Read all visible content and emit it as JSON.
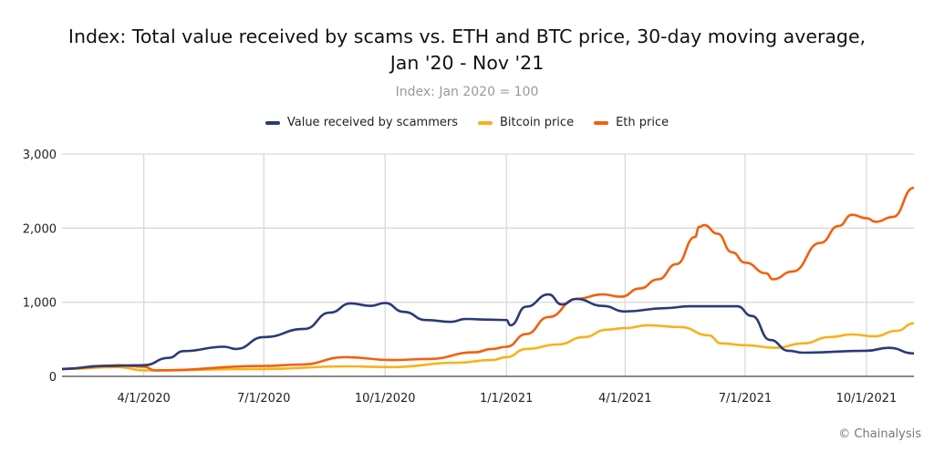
{
  "chart_data": {
    "type": "line",
    "title_line1": "Index: Total value received by scams vs. ETH and BTC price, 30-day moving average,",
    "title_line2": "Jan '20 - Nov '21",
    "subtitle": "Index: Jan 2020 = 100",
    "credit": "© Chainalysis",
    "legend_position": "top",
    "grid": true,
    "xlim": [
      "2020-01-30",
      "2021-11-06"
    ],
    "ylim": [
      0,
      3000
    ],
    "yticks": [
      0,
      1000,
      2000,
      3000
    ],
    "ytick_labels": [
      "0",
      "1,000",
      "2,000",
      "3,000"
    ],
    "xticks": [
      "2020-04-01",
      "2020-07-01",
      "2020-10-01",
      "2021-01-01",
      "2021-04-01",
      "2021-07-01",
      "2021-10-01"
    ],
    "xtick_labels": [
      "4/1/2020",
      "7/1/2020",
      "10/1/2020",
      "1/1/2021",
      "4/1/2021",
      "7/1/2021",
      "10/1/2021"
    ],
    "series": [
      {
        "name": "Value received by scammers",
        "color": "#2b3a75",
        "points": [
          [
            "2020-01-30",
            100
          ],
          [
            "2020-03-01",
            140
          ],
          [
            "2020-04-01",
            150
          ],
          [
            "2020-04-20",
            250
          ],
          [
            "2020-05-01",
            340
          ],
          [
            "2020-06-01",
            400
          ],
          [
            "2020-06-10",
            370
          ],
          [
            "2020-07-01",
            530
          ],
          [
            "2020-08-01",
            640
          ],
          [
            "2020-08-20",
            860
          ],
          [
            "2020-09-05",
            985
          ],
          [
            "2020-09-20",
            950
          ],
          [
            "2020-10-01",
            990
          ],
          [
            "2020-10-15",
            870
          ],
          [
            "2020-11-01",
            760
          ],
          [
            "2020-11-20",
            735
          ],
          [
            "2020-12-01",
            775
          ],
          [
            "2020-12-20",
            765
          ],
          [
            "2021-01-01",
            760
          ],
          [
            "2021-01-04",
            690
          ],
          [
            "2021-01-16",
            940
          ],
          [
            "2021-02-02",
            1105
          ],
          [
            "2021-02-12",
            970
          ],
          [
            "2021-02-23",
            1045
          ],
          [
            "2021-03-15",
            950
          ],
          [
            "2021-04-01",
            875
          ],
          [
            "2021-05-01",
            920
          ],
          [
            "2021-05-20",
            945
          ],
          [
            "2021-06-25",
            945
          ],
          [
            "2021-07-06",
            815
          ],
          [
            "2021-07-20",
            490
          ],
          [
            "2021-08-03",
            345
          ],
          [
            "2021-08-14",
            320
          ],
          [
            "2021-10-01",
            345
          ],
          [
            "2021-10-18",
            385
          ],
          [
            "2021-11-06",
            310
          ]
        ]
      },
      {
        "name": "Bitcoin price",
        "color": "#f7b21b",
        "points": [
          [
            "2020-01-30",
            100
          ],
          [
            "2020-03-13",
            125
          ],
          [
            "2020-04-01",
            80
          ],
          [
            "2020-07-01",
            100
          ],
          [
            "2020-09-01",
            135
          ],
          [
            "2020-10-06",
            125
          ],
          [
            "2020-11-24",
            185
          ],
          [
            "2020-12-21",
            220
          ],
          [
            "2021-01-01",
            260
          ],
          [
            "2021-01-16",
            370
          ],
          [
            "2021-02-09",
            430
          ],
          [
            "2021-03-01",
            530
          ],
          [
            "2021-03-18",
            630
          ],
          [
            "2021-04-01",
            650
          ],
          [
            "2021-04-18",
            690
          ],
          [
            "2021-05-13",
            665
          ],
          [
            "2021-06-03",
            555
          ],
          [
            "2021-06-13",
            445
          ],
          [
            "2021-07-01",
            420
          ],
          [
            "2021-07-24",
            385
          ],
          [
            "2021-08-14",
            445
          ],
          [
            "2021-09-03",
            530
          ],
          [
            "2021-09-20",
            565
          ],
          [
            "2021-10-07",
            540
          ],
          [
            "2021-10-24",
            615
          ],
          [
            "2021-11-06",
            715
          ]
        ]
      },
      {
        "name": "Eth price",
        "color": "#f2600c",
        "points": [
          [
            "2020-01-30",
            100
          ],
          [
            "2020-03-13",
            150
          ],
          [
            "2020-04-01",
            130
          ],
          [
            "2020-04-10",
            80
          ],
          [
            "2020-07-01",
            140
          ],
          [
            "2020-07-29",
            160
          ],
          [
            "2020-09-01",
            260
          ],
          [
            "2020-10-06",
            220
          ],
          [
            "2020-11-03",
            235
          ],
          [
            "2020-12-08",
            325
          ],
          [
            "2020-12-21",
            370
          ],
          [
            "2021-01-01",
            400
          ],
          [
            "2021-01-16",
            570
          ],
          [
            "2021-02-02",
            800
          ],
          [
            "2021-02-23",
            1045
          ],
          [
            "2021-03-15",
            1105
          ],
          [
            "2021-03-29",
            1075
          ],
          [
            "2021-04-12",
            1185
          ],
          [
            "2021-04-26",
            1310
          ],
          [
            "2021-05-10",
            1515
          ],
          [
            "2021-05-24",
            1880
          ],
          [
            "2021-05-27",
            2015
          ],
          [
            "2021-05-31",
            2040
          ],
          [
            "2021-06-10",
            1925
          ],
          [
            "2021-06-21",
            1675
          ],
          [
            "2021-07-01",
            1535
          ],
          [
            "2021-07-17",
            1390
          ],
          [
            "2021-07-22",
            1310
          ],
          [
            "2021-08-06",
            1415
          ],
          [
            "2021-08-27",
            1800
          ],
          [
            "2021-09-10",
            2030
          ],
          [
            "2021-09-20",
            2180
          ],
          [
            "2021-10-01",
            2135
          ],
          [
            "2021-10-08",
            2085
          ],
          [
            "2021-10-21",
            2150
          ],
          [
            "2021-11-06",
            2545
          ]
        ]
      }
    ]
  }
}
